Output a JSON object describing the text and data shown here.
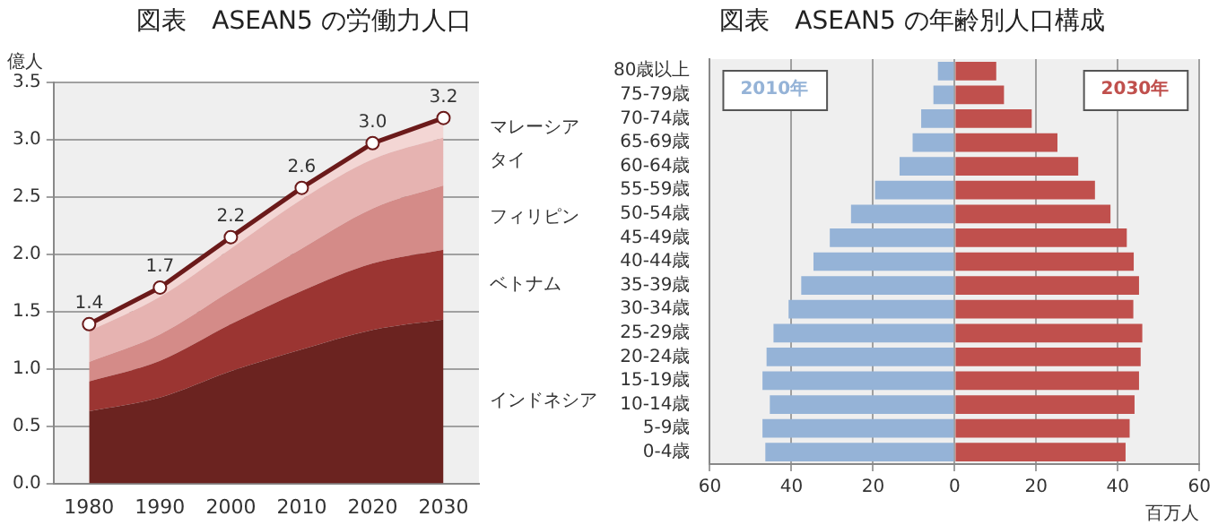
{
  "chart_data": [
    {
      "type": "area",
      "title": "図表　ASEAN5 の労働力人口",
      "ylabel": "億人",
      "categories": [
        "1980",
        "1990",
        "2000",
        "2010",
        "2020",
        "2030"
      ],
      "stacked": true,
      "ylim": [
        0,
        3.5
      ],
      "yticks": [
        {
          "value": 0,
          "label": "0.0"
        },
        0.5,
        {
          "value": 1,
          "label": "1.0"
        },
        1.5,
        {
          "value": 2,
          "label": "2.0"
        },
        2.5,
        {
          "value": 3,
          "label": "3.0"
        },
        3.5
      ],
      "grid": "y",
      "legend": false,
      "series": [
        {
          "name": "インドネシア",
          "color": "#6b2320",
          "values": [
            0.63,
            0.75,
            0.98,
            1.17,
            1.34,
            1.43
          ]
        },
        {
          "name": "ベトナム",
          "color": "#9b3532",
          "values": [
            0.26,
            0.32,
            0.41,
            0.51,
            0.58,
            0.61
          ]
        },
        {
          "name": "フィリピン",
          "color": "#d48b88",
          "values": [
            0.17,
            0.23,
            0.29,
            0.37,
            0.48,
            0.56
          ]
        },
        {
          "name": "タイ",
          "color": "#e6b3b1",
          "values": [
            0.27,
            0.33,
            0.37,
            0.43,
            0.43,
            0.42
          ]
        },
        {
          "name": "マレーシア",
          "color": "#f3d6d4",
          "values": [
            0.06,
            0.08,
            0.1,
            0.1,
            0.14,
            0.17
          ]
        }
      ],
      "totals": [
        "1.4",
        "1.7",
        "2.2",
        "2.6",
        "3.0",
        "3.2"
      ]
    },
    {
      "type": "bar",
      "orientation": "horizontal",
      "stacked": true,
      "title": "図表　ASEAN5 の年齢別人口構成",
      "xlabel": "百万人",
      "categories": [
        "80歳以上",
        "75-79歳",
        "70-74歳",
        "65-69歳",
        "60-64歳",
        "55-59歳",
        "50-54歳",
        "45-49歳",
        "40-44歳",
        "35-39歳",
        "30-34歳",
        "25-29歳",
        "20-24歳",
        "15-19歳",
        "10-14歳",
        "5-9歳",
        "0-4歳"
      ],
      "xlim": [
        -60,
        60
      ],
      "xticks": [
        {
          "value": -60,
          "label": "60"
        },
        {
          "value": -40,
          "label": "40"
        },
        {
          "value": -20,
          "label": "20"
        },
        0,
        20,
        40,
        60
      ],
      "grid": "x",
      "legend": false,
      "series": [
        {
          "name": "2010年",
          "color": "#95b3d7",
          "values": [
            -4.1,
            -5.2,
            -8.2,
            -10.3,
            -13.5,
            -19.5,
            -25.4,
            -30.6,
            -34.6,
            -37.6,
            -40.7,
            -44.4,
            -46.1,
            -47.1,
            -45.3,
            -47.1,
            -46.4
          ]
        },
        {
          "name": "2030年",
          "color": "#c0504d",
          "values": [
            10.2,
            12.1,
            18.9,
            25.2,
            30.3,
            34.4,
            38.2,
            42.2,
            43.9,
            45.2,
            43.8,
            46,
            45.6,
            45.2,
            44.1,
            42.9,
            41.9
          ]
        }
      ]
    }
  ]
}
